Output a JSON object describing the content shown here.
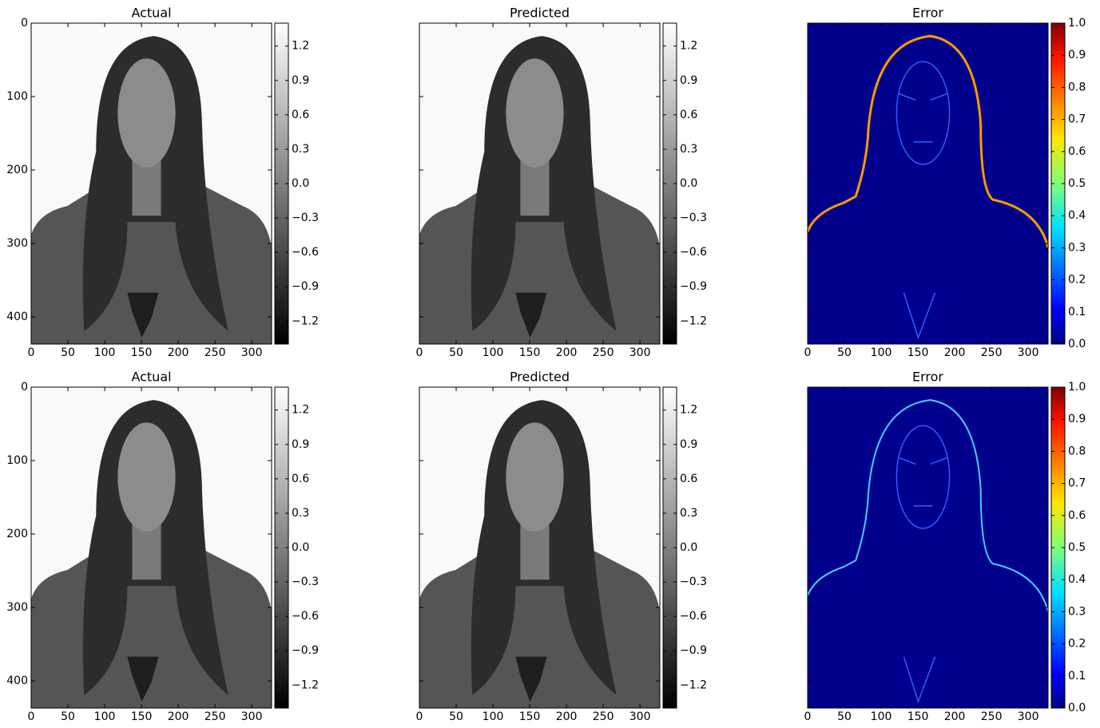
{
  "chart_data": [
    {
      "type": "image",
      "title": "Actual",
      "xlim": [
        0,
        327
      ],
      "ylim": [
        437,
        0
      ],
      "xticks": [
        0,
        50,
        100,
        150,
        200,
        250,
        300
      ],
      "yticks": [
        0,
        100,
        200,
        300,
        400
      ],
      "show_yticklabels": true,
      "colormap": "gray",
      "clim": [
        -1.4,
        1.4
      ],
      "cticks": [
        {
          "value": -1.2,
          "label": "−1.2"
        },
        {
          "value": -0.9,
          "label": "−0.9"
        },
        {
          "value": -0.6,
          "label": "−0.6"
        },
        {
          "value": -0.3,
          "label": "−0.3"
        },
        {
          "value": 0,
          "label": "0.0"
        },
        0.3,
        0.6,
        0.9,
        1.2
      ]
    },
    {
      "type": "image",
      "title": "Predicted",
      "xlim": [
        0,
        327
      ],
      "ylim": [
        437,
        0
      ],
      "xticks": [
        0,
        50,
        100,
        150,
        200,
        250,
        300
      ],
      "yticks": [
        0,
        100,
        200,
        300,
        400
      ],
      "show_yticklabels": false,
      "colormap": "gray",
      "clim": [
        -1.4,
        1.4
      ],
      "cticks": [
        {
          "value": -1.2,
          "label": "−1.2"
        },
        {
          "value": -0.9,
          "label": "−0.9"
        },
        {
          "value": -0.6,
          "label": "−0.6"
        },
        {
          "value": -0.3,
          "label": "−0.3"
        },
        {
          "value": 0,
          "label": "0.0"
        },
        0.3,
        0.6,
        0.9,
        1.2
      ]
    },
    {
      "type": "image",
      "title": "Error",
      "xlim": [
        0,
        327
      ],
      "ylim": [
        437,
        0
      ],
      "xticks": [
        0,
        50,
        100,
        150,
        200,
        250,
        300
      ],
      "yticks": [
        0,
        100,
        200,
        300,
        400
      ],
      "show_yticklabels": false,
      "colormap": "jet",
      "clim": [
        0,
        1
      ],
      "cticks": [
        {
          "value": 0,
          "label": "0.0"
        },
        0.1,
        0.2,
        0.3,
        0.4,
        0.5,
        0.6,
        0.7,
        0.8,
        0.9,
        {
          "value": 1,
          "label": "1.0"
        }
      ]
    },
    {
      "type": "image",
      "title": "Actual",
      "xlim": [
        0,
        327
      ],
      "ylim": [
        437,
        0
      ],
      "xticks": [
        0,
        50,
        100,
        150,
        200,
        250,
        300
      ],
      "yticks": [
        0,
        100,
        200,
        300,
        400
      ],
      "show_yticklabels": true,
      "colormap": "gray",
      "clim": [
        -1.4,
        1.4
      ],
      "cticks": [
        {
          "value": -1.2,
          "label": "−1.2"
        },
        {
          "value": -0.9,
          "label": "−0.9"
        },
        {
          "value": -0.6,
          "label": "−0.6"
        },
        {
          "value": -0.3,
          "label": "−0.3"
        },
        {
          "value": 0,
          "label": "0.0"
        },
        0.3,
        0.6,
        0.9,
        1.2
      ]
    },
    {
      "type": "image",
      "title": "Predicted",
      "xlim": [
        0,
        327
      ],
      "ylim": [
        437,
        0
      ],
      "xticks": [
        0,
        50,
        100,
        150,
        200,
        250,
        300
      ],
      "yticks": [
        0,
        100,
        200,
        300,
        400
      ],
      "show_yticklabels": false,
      "colormap": "gray",
      "clim": [
        -1.4,
        1.4
      ],
      "cticks": [
        {
          "value": -1.2,
          "label": "−1.2"
        },
        {
          "value": -0.9,
          "label": "−0.9"
        },
        {
          "value": -0.6,
          "label": "−0.6"
        },
        {
          "value": -0.3,
          "label": "−0.3"
        },
        {
          "value": 0,
          "label": "0.0"
        },
        0.3,
        0.6,
        0.9,
        1.2
      ]
    },
    {
      "type": "image",
      "title": "Error",
      "xlim": [
        0,
        327
      ],
      "ylim": [
        437,
        0
      ],
      "xticks": [
        0,
        50,
        100,
        150,
        200,
        250,
        300
      ],
      "yticks": [
        0,
        100,
        200,
        300,
        400
      ],
      "show_yticklabels": false,
      "colormap": "jet",
      "clim": [
        0,
        1
      ],
      "cticks": [
        {
          "value": 0,
          "label": "0.0"
        },
        0.1,
        0.2,
        0.3,
        0.4,
        0.5,
        0.6,
        0.7,
        0.8,
        0.9,
        {
          "value": 1,
          "label": "1.0"
        }
      ]
    }
  ]
}
